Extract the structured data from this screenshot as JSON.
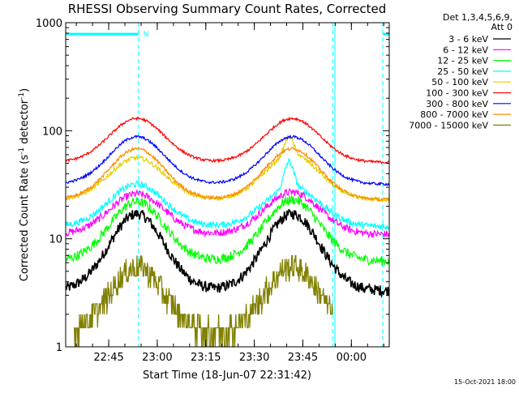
{
  "chart_data": {
    "type": "line",
    "title": "RHESSI Observing Summary Count Rates, Corrected",
    "xlabel": "Start Time (18-Jun-07 22:31:42)",
    "ylabel_main": "Corrected Count Rate (s",
    "ylabel_sup1": "-1",
    "ylabel_mid": " detector",
    "ylabel_sup2": "-1",
    "ylabel_end": ")",
    "y_scale": "log",
    "ylim": [
      1,
      1000
    ],
    "xlim_minutes": [
      0,
      100
    ],
    "y_ticks": [
      {
        "value": 1000,
        "label": "1000"
      },
      {
        "value": 100,
        "label": "100"
      },
      {
        "value": 10,
        "label": "10"
      },
      {
        "value": 1,
        "label": "1"
      }
    ],
    "x_ticks": [
      {
        "value": 13.3,
        "label": "22:45"
      },
      {
        "value": 28.3,
        "label": "23:00"
      },
      {
        "value": 43.3,
        "label": "23:15"
      },
      {
        "value": 58.3,
        "label": "23:30"
      },
      {
        "value": 73.3,
        "label": "23:45"
      },
      {
        "value": 88.3,
        "label": "00:00"
      }
    ],
    "night_intervals": [
      [
        0,
        22.5
      ],
      [
        98,
        100
      ]
    ],
    "night_label": "N",
    "vertical_markers_dashed": [
      22.5,
      82.5,
      98
    ],
    "vertical_markers_solid": [
      83.2
    ],
    "legend_header": [
      "Det 1,3,4,5,6,9,",
      "Att 0"
    ],
    "timestamp": "15-Oct-2021 18:00",
    "series": [
      {
        "name": "3 - 6 keV",
        "color": "#000000",
        "base": 3.3,
        "peak1": 17,
        "peak2": 17,
        "noise": 0.05,
        "start": 0,
        "end": 100
      },
      {
        "name": "6 - 12 keV",
        "color": "#ff00ff",
        "base": 11,
        "peak1": 26,
        "peak2": 27,
        "noise": 0.035,
        "start": 0,
        "end": 100
      },
      {
        "name": "12 - 25 keV",
        "color": "#00ff00",
        "base": 6.2,
        "peak1": 22,
        "peak2": 23,
        "noise": 0.045,
        "start": 0,
        "end": 100
      },
      {
        "name": "25 - 50 keV",
        "color": "#00ffff",
        "base": 13,
        "peak1": 32,
        "peak2": 30,
        "noise": 0.03,
        "start": 0,
        "end": 100,
        "flare_peak": 52
      },
      {
        "name": "50 - 100 keV",
        "color": "#e0d000",
        "base": 23,
        "peak1": 56,
        "peak2": 60,
        "noise": 0.02,
        "start": 0,
        "end": 100,
        "flare_peak": 88
      },
      {
        "name": "100 - 300 keV",
        "color": "#ff0000",
        "base": 51,
        "peak1": 130,
        "peak2": 130,
        "noise": 0.012,
        "start": 0,
        "end": 100
      },
      {
        "name": "300 - 800 keV",
        "color": "#0000ff",
        "base": 32,
        "peak1": 88,
        "peak2": 88,
        "noise": 0.012,
        "start": 0,
        "end": 100
      },
      {
        "name": "800 - 7000 keV",
        "color": "#ff8c00",
        "base": 23,
        "peak1": 68,
        "peak2": 68,
        "noise": 0.015,
        "start": 0,
        "end": 100
      },
      {
        "name": "7000 - 15000 keV",
        "color": "#808000",
        "base": 1.3,
        "peak1": 5.5,
        "peak2": 5.5,
        "noise": 0.12,
        "start": 2.5,
        "end": 82.5
      }
    ]
  }
}
